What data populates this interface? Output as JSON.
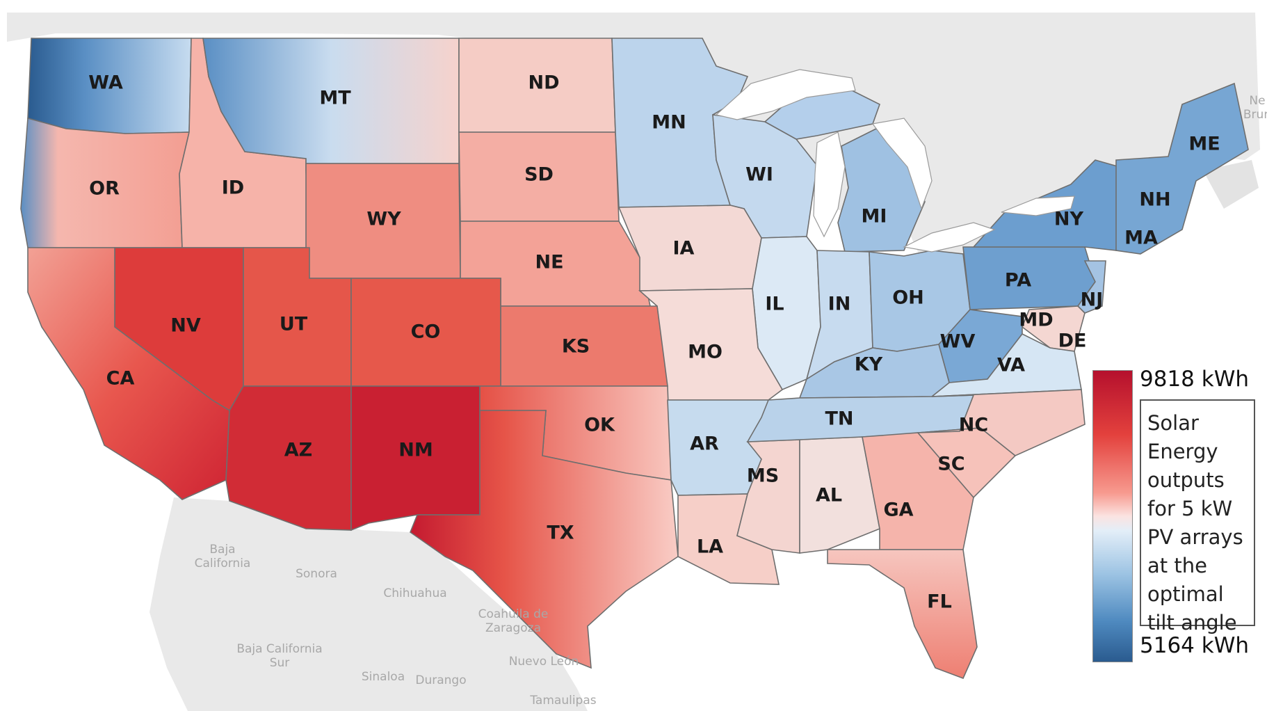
{
  "legend": {
    "max_label": "9818 kWh",
    "min_label": "5164 kWh",
    "title": "Solar Energy outputs for 5 kW PV arrays at the optimal tilt angle",
    "max_value_kwh": 9818,
    "min_value_kwh": 5164,
    "high_color": "#b5102d",
    "mid_color": "#f7f3f3",
    "low_color": "#2a5b8f"
  },
  "states": [
    {
      "abbr": "WA",
      "value": 0.18
    },
    {
      "abbr": "MT",
      "value": 0.4
    },
    {
      "abbr": "ND",
      "value": 0.42
    },
    {
      "abbr": "MN",
      "value": 0.32
    },
    {
      "abbr": "ME",
      "value": 0.22
    },
    {
      "abbr": "OR",
      "value": 0.62
    },
    {
      "abbr": "ID",
      "value": 0.6
    },
    {
      "abbr": "SD",
      "value": 0.58
    },
    {
      "abbr": "WI",
      "value": 0.32
    },
    {
      "abbr": "WY",
      "value": 0.7
    },
    {
      "abbr": "MI",
      "value": 0.26
    },
    {
      "abbr": "NY",
      "value": 0.2
    },
    {
      "abbr": "NH",
      "value": 0.24
    },
    {
      "abbr": "MA",
      "value": 0.26
    },
    {
      "abbr": "IA",
      "value": 0.48
    },
    {
      "abbr": "NE",
      "value": 0.66
    },
    {
      "abbr": "NV",
      "value": 0.86
    },
    {
      "abbr": "UT",
      "value": 0.82
    },
    {
      "abbr": "CO",
      "value": 0.83
    },
    {
      "abbr": "PA",
      "value": 0.2
    },
    {
      "abbr": "NJ",
      "value": 0.3
    },
    {
      "abbr": "IL",
      "value": 0.42
    },
    {
      "abbr": "IN",
      "value": 0.34
    },
    {
      "abbr": "OH",
      "value": 0.28
    },
    {
      "abbr": "MD",
      "value": 0.36
    },
    {
      "abbr": "DE",
      "value": 0.4
    },
    {
      "abbr": "CA",
      "value": 0.78
    },
    {
      "abbr": "KS",
      "value": 0.74
    },
    {
      "abbr": "MO",
      "value": 0.52
    },
    {
      "abbr": "KY",
      "value": 0.32
    },
    {
      "abbr": "WV",
      "value": 0.24
    },
    {
      "abbr": "VA",
      "value": 0.42
    },
    {
      "abbr": "OK",
      "value": 0.68
    },
    {
      "abbr": "TN",
      "value": 0.38
    },
    {
      "abbr": "NC",
      "value": 0.56
    },
    {
      "abbr": "AZ",
      "value": 0.93
    },
    {
      "abbr": "NM",
      "value": 0.96
    },
    {
      "abbr": "AR",
      "value": 0.44
    },
    {
      "abbr": "SC",
      "value": 0.58
    },
    {
      "abbr": "MS",
      "value": 0.54
    },
    {
      "abbr": "AL",
      "value": 0.52
    },
    {
      "abbr": "GA",
      "value": 0.6
    },
    {
      "abbr": "TX",
      "value": 0.7
    },
    {
      "abbr": "LA",
      "value": 0.58
    },
    {
      "abbr": "FL",
      "value": 0.68
    }
  ],
  "places": [
    {
      "id": "baja-california",
      "lines": [
        "Baja",
        "California"
      ]
    },
    {
      "id": "sonora",
      "lines": [
        "Sonora"
      ]
    },
    {
      "id": "chihuahua",
      "lines": [
        "Chihuahua"
      ]
    },
    {
      "id": "coahuila",
      "lines": [
        "Coahuila de",
        "Zaragoza"
      ]
    },
    {
      "id": "baja-california-sur",
      "lines": [
        "Baja California",
        "Sur"
      ]
    },
    {
      "id": "sinaloa",
      "lines": [
        "Sinaloa"
      ]
    },
    {
      "id": "durango",
      "lines": [
        "Durango"
      ]
    },
    {
      "id": "nuevo-leon",
      "lines": [
        "Nuevo León"
      ]
    },
    {
      "id": "tamaulipas",
      "lines": [
        "Tamaulipas"
      ]
    },
    {
      "id": "brunswick",
      "lines": [
        "Ne",
        "Brun"
      ]
    }
  ]
}
